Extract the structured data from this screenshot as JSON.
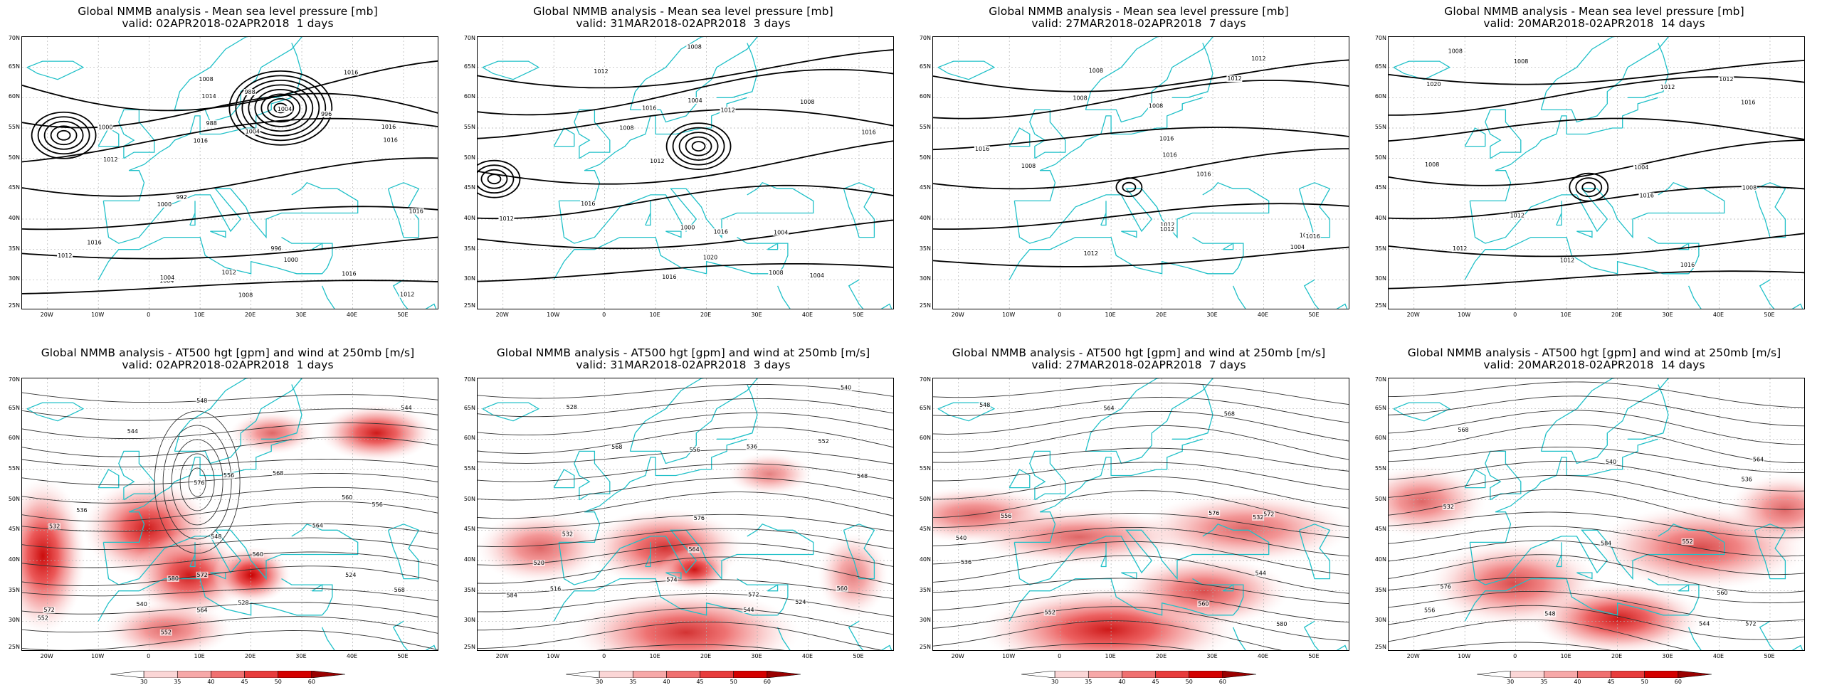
{
  "panels": [
    {
      "id": "p1",
      "line1": "Global NMMB analysis - Mean sea level pressure [mb]",
      "line2": "valid: 02APR2018-02APR2018  1 days",
      "kind": "mslp"
    },
    {
      "id": "p2",
      "line1": "Global NMMB analysis - Mean sea level pressure [mb]",
      "line2": "valid: 31MAR2018-02APR2018  3 days",
      "kind": "mslp"
    },
    {
      "id": "p3",
      "line1": "Global NMMB analysis - Mean sea level pressure [mb]",
      "line2": "valid: 27MAR2018-02APR2018  7 days",
      "kind": "mslp"
    },
    {
      "id": "p4",
      "line1": "Global NMMB analysis - Mean sea level pressure [mb]",
      "line2": "valid: 20MAR2018-02APR2018  14 days",
      "kind": "mslp"
    },
    {
      "id": "p5",
      "line1": "Global NMMB analysis - AT500 hgt [gpm] and wind at 250mb [m/s]",
      "line2": "valid: 02APR2018-02APR2018  1 days",
      "kind": "z500"
    },
    {
      "id": "p6",
      "line1": "Global NMMB analysis - AT500 hgt [gpm] and wind at 250mb [m/s]",
      "line2": "valid: 31MAR2018-02APR2018  3 days",
      "kind": "z500"
    },
    {
      "id": "p7",
      "line1": "Global NMMB analysis - AT500 hgt [gpm] and wind at 250mb [m/s]",
      "line2": "valid: 27MAR2018-02APR2018  7 days",
      "kind": "z500"
    },
    {
      "id": "p8",
      "line1": "Global NMMB analysis - AT500 hgt [gpm] and wind at 250mb [m/s]",
      "line2": "valid: 20MAR2018-02APR2018  14 days",
      "kind": "z500"
    }
  ],
  "lat_labels": [
    "70N",
    "65N",
    "60N",
    "55N",
    "50N",
    "45N",
    "40N",
    "35N",
    "30N",
    "25N"
  ],
  "lon_labels": [
    "20W",
    "10W",
    "0",
    "10E",
    "20E",
    "30E",
    "40E",
    "50E"
  ],
  "colorbar_labels": [
    "30",
    "35",
    "40",
    "45",
    "50",
    "60"
  ],
  "colorbar_colors": [
    "#ffffff",
    "#fbd6d6",
    "#f7a8a8",
    "#f07070",
    "#e83c3c",
    "#d40000",
    "#9a0000"
  ],
  "mslp_labels": [
    [
      "1016",
      "1012",
      "1004",
      "992",
      "988",
      "996",
      "1000",
      "1004",
      "1008",
      "1012",
      "1016",
      "1012",
      "1016",
      "1016",
      "1014",
      "1016",
      "1008",
      "1004",
      "1000",
      "996",
      "988",
      "1000",
      "1016",
      "1016",
      "1004",
      "1012"
    ],
    [
      "1008",
      "1020",
      "1016",
      "1012",
      "1008",
      "1004",
      "1000",
      "1004",
      "1008",
      "1012",
      "1016",
      "1012",
      "1016",
      "1004",
      "1008",
      "1012",
      "1016",
      "1016"
    ],
    [
      "1016",
      "1012",
      "1008",
      "1004",
      "1008",
      "1012",
      "1016",
      "1016",
      "1012",
      "1008",
      "1004",
      "1012",
      "1008",
      "1012",
      "1016",
      "1016"
    ],
    [
      "1012",
      "1008",
      "1016",
      "1004",
      "1008",
      "1012",
      "1008",
      "1012",
      "1008",
      "1012",
      "1016",
      "1016",
      "1012",
      "1020"
    ]
  ],
  "z500_labels": [
    [
      "524",
      "528",
      "532",
      "536",
      "540",
      "544",
      "548",
      "552",
      "556",
      "560",
      "564",
      "568",
      "572",
      "576",
      "580",
      "544",
      "548",
      "552",
      "556",
      "560",
      "564",
      "568",
      "572"
    ],
    [
      "516",
      "520",
      "524",
      "528",
      "532",
      "536",
      "540",
      "544",
      "548",
      "552",
      "556",
      "560",
      "564",
      "568",
      "572",
      "576",
      "574",
      "584"
    ],
    [
      "532",
      "536",
      "540",
      "544",
      "548",
      "552",
      "556",
      "560",
      "564",
      "568",
      "572",
      "576",
      "580"
    ],
    [
      "532",
      "536",
      "540",
      "544",
      "548",
      "552",
      "556",
      "560",
      "564",
      "568",
      "572",
      "576",
      "584"
    ]
  ],
  "colors": {
    "coast": "#20c0c8",
    "contour": "#000000",
    "grid": "#b0b0b0"
  }
}
